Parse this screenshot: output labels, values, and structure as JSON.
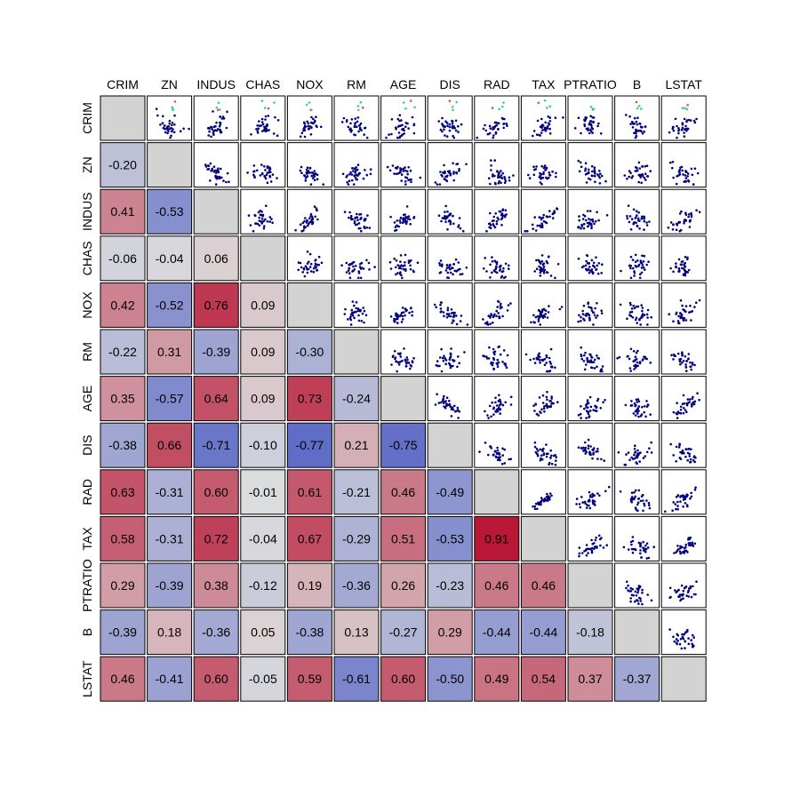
{
  "chart_data": {
    "type": "heatmap",
    "subtype": "correlation-pair-plot",
    "variables": [
      "CRIM",
      "ZN",
      "INDUS",
      "CHAS",
      "NOX",
      "RM",
      "AGE",
      "DIS",
      "RAD",
      "TAX",
      "PTRATIO",
      "B",
      "LSTAT"
    ],
    "lower_triangle": "correlation coefficients shown as colored cells with values",
    "upper_triangle": "pairwise scatter plots colored by density",
    "diagonal": "blank gray cells",
    "correlations": [
      [
        null,
        null,
        null,
        null,
        null,
        null,
        null,
        null,
        null,
        null,
        null,
        null,
        null
      ],
      [
        -0.2,
        null,
        null,
        null,
        null,
        null,
        null,
        null,
        null,
        null,
        null,
        null,
        null
      ],
      [
        0.41,
        -0.53,
        null,
        null,
        null,
        null,
        null,
        null,
        null,
        null,
        null,
        null,
        null
      ],
      [
        -0.06,
        -0.04,
        0.06,
        null,
        null,
        null,
        null,
        null,
        null,
        null,
        null,
        null,
        null
      ],
      [
        0.42,
        -0.52,
        0.76,
        0.09,
        null,
        null,
        null,
        null,
        null,
        null,
        null,
        null,
        null
      ],
      [
        -0.22,
        0.31,
        -0.39,
        0.09,
        -0.3,
        null,
        null,
        null,
        null,
        null,
        null,
        null,
        null
      ],
      [
        0.35,
        -0.57,
        0.64,
        0.09,
        0.73,
        -0.24,
        null,
        null,
        null,
        null,
        null,
        null,
        null
      ],
      [
        -0.38,
        0.66,
        -0.71,
        -0.1,
        -0.77,
        0.21,
        -0.75,
        null,
        null,
        null,
        null,
        null,
        null
      ],
      [
        0.63,
        -0.31,
        0.6,
        -0.01,
        0.61,
        -0.21,
        0.46,
        -0.49,
        null,
        null,
        null,
        null,
        null
      ],
      [
        0.58,
        -0.31,
        0.72,
        -0.04,
        0.67,
        -0.29,
        0.51,
        -0.53,
        0.91,
        null,
        null,
        null,
        null
      ],
      [
        0.29,
        -0.39,
        0.38,
        -0.12,
        0.19,
        -0.36,
        0.26,
        -0.23,
        0.46,
        0.46,
        null,
        null,
        null
      ],
      [
        -0.39,
        0.18,
        -0.36,
        0.05,
        -0.38,
        0.13,
        -0.27,
        0.29,
        -0.44,
        -0.44,
        -0.18,
        null,
        null
      ],
      [
        0.46,
        -0.41,
        0.6,
        -0.05,
        0.59,
        -0.61,
        0.6,
        -0.5,
        0.49,
        0.54,
        0.37,
        -0.37,
        null
      ]
    ],
    "colors": {
      "negative": "#3b4cc0",
      "neutral": "#dddddd",
      "positive": "#b40426",
      "diagonal": "#d3d3d3",
      "scatter_low_density": "#00007f",
      "scatter_high_density": "#e8541a"
    },
    "title": "",
    "xlabel": "",
    "ylabel": "",
    "grid": false,
    "legend": "none"
  }
}
